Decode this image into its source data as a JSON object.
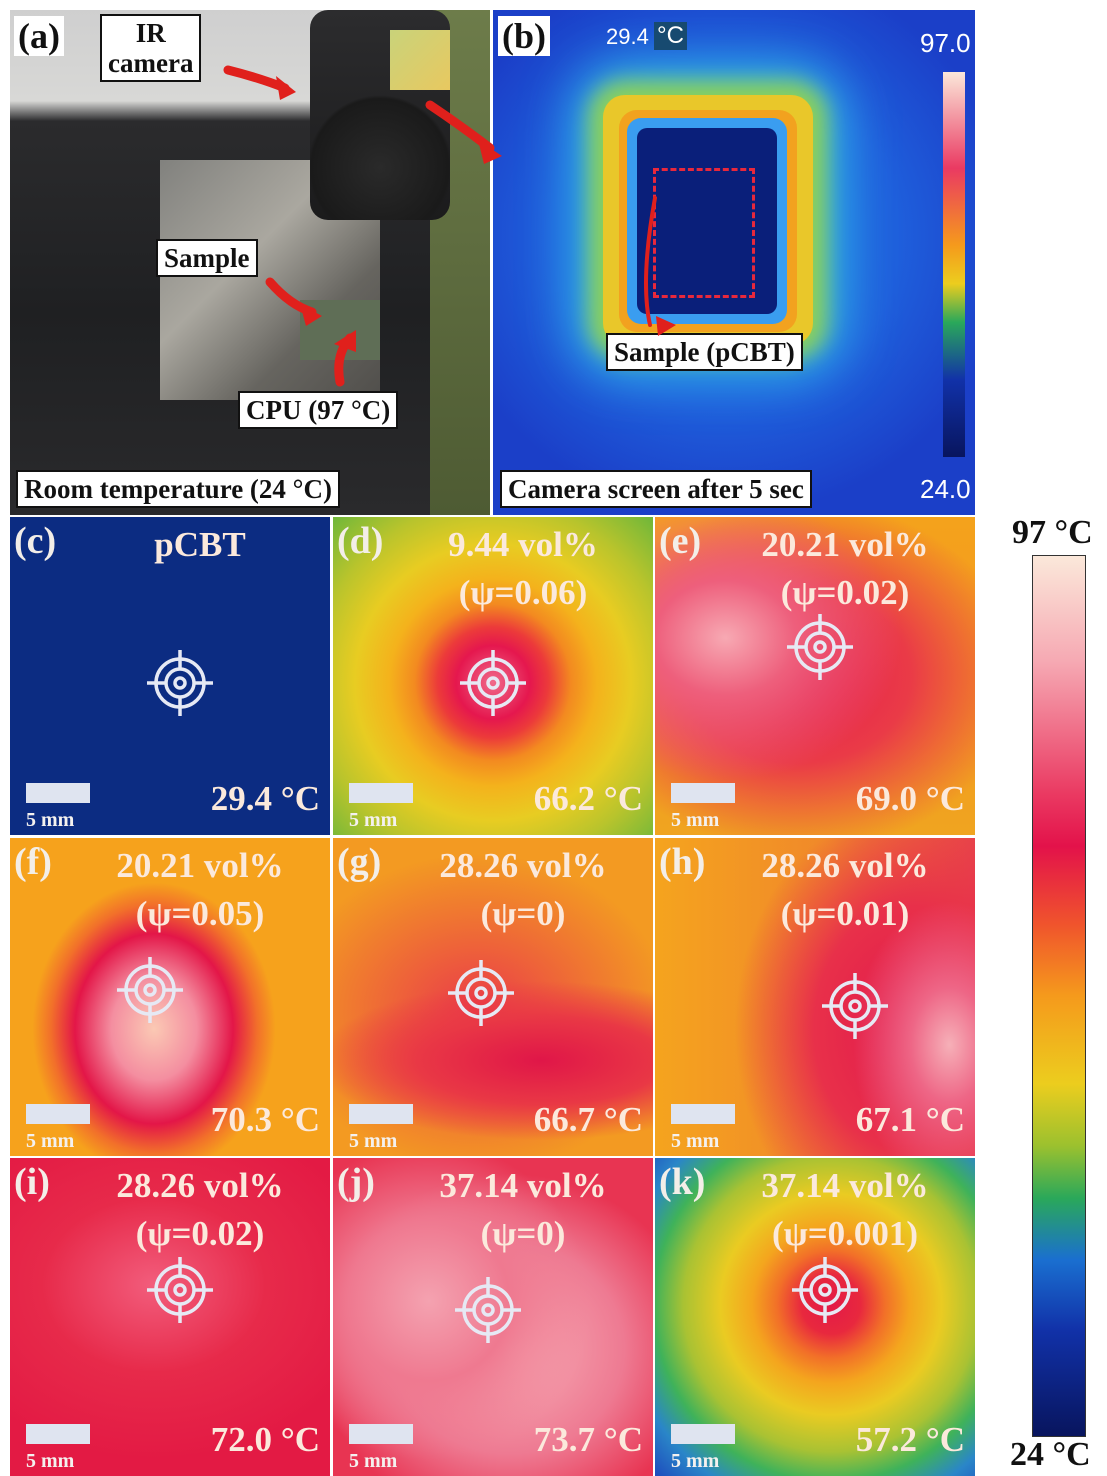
{
  "panel_a": {
    "label": "(a)",
    "camera_label": [
      "IR",
      "camera"
    ],
    "sample_label": "Sample",
    "cpu_label": "CPU (97 °C)",
    "caption": "Room temperature (24 °C)"
  },
  "panel_b": {
    "label": "(b)",
    "reading": "29.4",
    "reading_unit": "°C",
    "scale_max": "97.0",
    "scale_min": "24.0",
    "sample_label": "Sample (pCBT)",
    "caption": "Camera screen after 5 sec"
  },
  "thermal_panels": [
    {
      "label": "(c)",
      "title": [
        "pCBT"
      ],
      "temperature": "29.4 °C",
      "scale_bar": "5 mm"
    },
    {
      "label": "(d)",
      "title": [
        "9.44 vol%",
        "(ψ=0.06)"
      ],
      "temperature": "66.2 °C",
      "scale_bar": "5 mm"
    },
    {
      "label": "(e)",
      "title": [
        "20.21 vol%",
        "(ψ=0.02)"
      ],
      "temperature": "69.0 °C",
      "scale_bar": "5 mm"
    },
    {
      "label": "(f)",
      "title": [
        "20.21 vol%",
        "(ψ=0.05)"
      ],
      "temperature": "70.3 °C",
      "scale_bar": "5 mm"
    },
    {
      "label": "(g)",
      "title": [
        "28.26 vol%",
        "(ψ=0)"
      ],
      "temperature": "66.7 °C",
      "scale_bar": "5 mm"
    },
    {
      "label": "(h)",
      "title": [
        "28.26 vol%",
        "(ψ=0.01)"
      ],
      "temperature": "67.1 °C",
      "scale_bar": "5 mm"
    },
    {
      "label": "(i)",
      "title": [
        "28.26 vol%",
        "(ψ=0.02)"
      ],
      "temperature": "72.0 °C",
      "scale_bar": "5 mm"
    },
    {
      "label": "(j)",
      "title": [
        "37.14 vol%",
        "(ψ=0)"
      ],
      "temperature": "73.7 °C",
      "scale_bar": "5 mm"
    },
    {
      "label": "(k)",
      "title": [
        "37.14 vol%",
        "(ψ=0.001)"
      ],
      "temperature": "57.2 °C",
      "scale_bar": "5 mm"
    }
  ],
  "colorbar": {
    "max_label": "97 °C",
    "min_label": "24 °C"
  }
}
